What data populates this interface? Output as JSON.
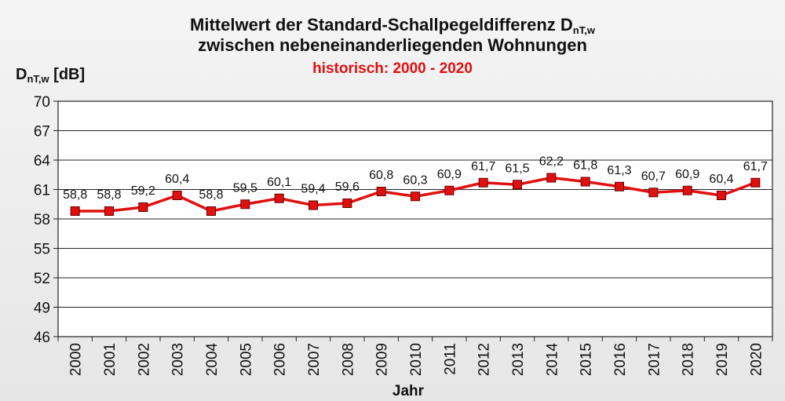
{
  "header": {
    "title_line1_main": "Mittelwert der Standard-Schallpegeldifferenz D",
    "title_line1_sub": "nT,w",
    "title_line2": "zwischen nebeneinanderliegenden Wohnungen",
    "subtitle": "historisch: 2000 - 2020"
  },
  "chart_data": {
    "type": "line",
    "title": "Mittelwert der Standard-Schallpegeldifferenz DnT,w zwischen nebeneinanderliegenden Wohnungen",
    "subtitle": "historisch: 2000 - 2020",
    "ylabel_main": "D",
    "ylabel_sub": "nT,w",
    "ylabel_unit": " [dB]",
    "xlabel": "Jahr",
    "ylim": [
      46,
      70
    ],
    "yticks": [
      46,
      49,
      52,
      55,
      58,
      61,
      64,
      67,
      70
    ],
    "categories": [
      "2000",
      "2001",
      "2002",
      "2003",
      "2004",
      "2005",
      "2006",
      "2007",
      "2008",
      "2009",
      "2010",
      "2011",
      "2012",
      "2013",
      "2014",
      "2015",
      "2016",
      "2017",
      "2018",
      "2019",
      "2020"
    ],
    "values": [
      58.8,
      58.8,
      59.2,
      60.4,
      58.8,
      59.5,
      60.1,
      59.4,
      59.6,
      60.8,
      60.3,
      60.9,
      61.7,
      61.5,
      62.2,
      61.8,
      61.3,
      60.7,
      60.9,
      60.4,
      61.7
    ],
    "value_labels": [
      "58,8",
      "58,8",
      "59,2",
      "60,4",
      "58,8",
      "59,5",
      "60,1",
      "59,4",
      "59,6",
      "60,8",
      "60,3",
      "60,9",
      "61,7",
      "61,5",
      "62,2",
      "61,8",
      "61,3",
      "60,7",
      "60,9",
      "60,4",
      "61,7"
    ],
    "line_color": "#e01010",
    "marker_color": "#e01010",
    "grid": true,
    "legend": "none"
  }
}
